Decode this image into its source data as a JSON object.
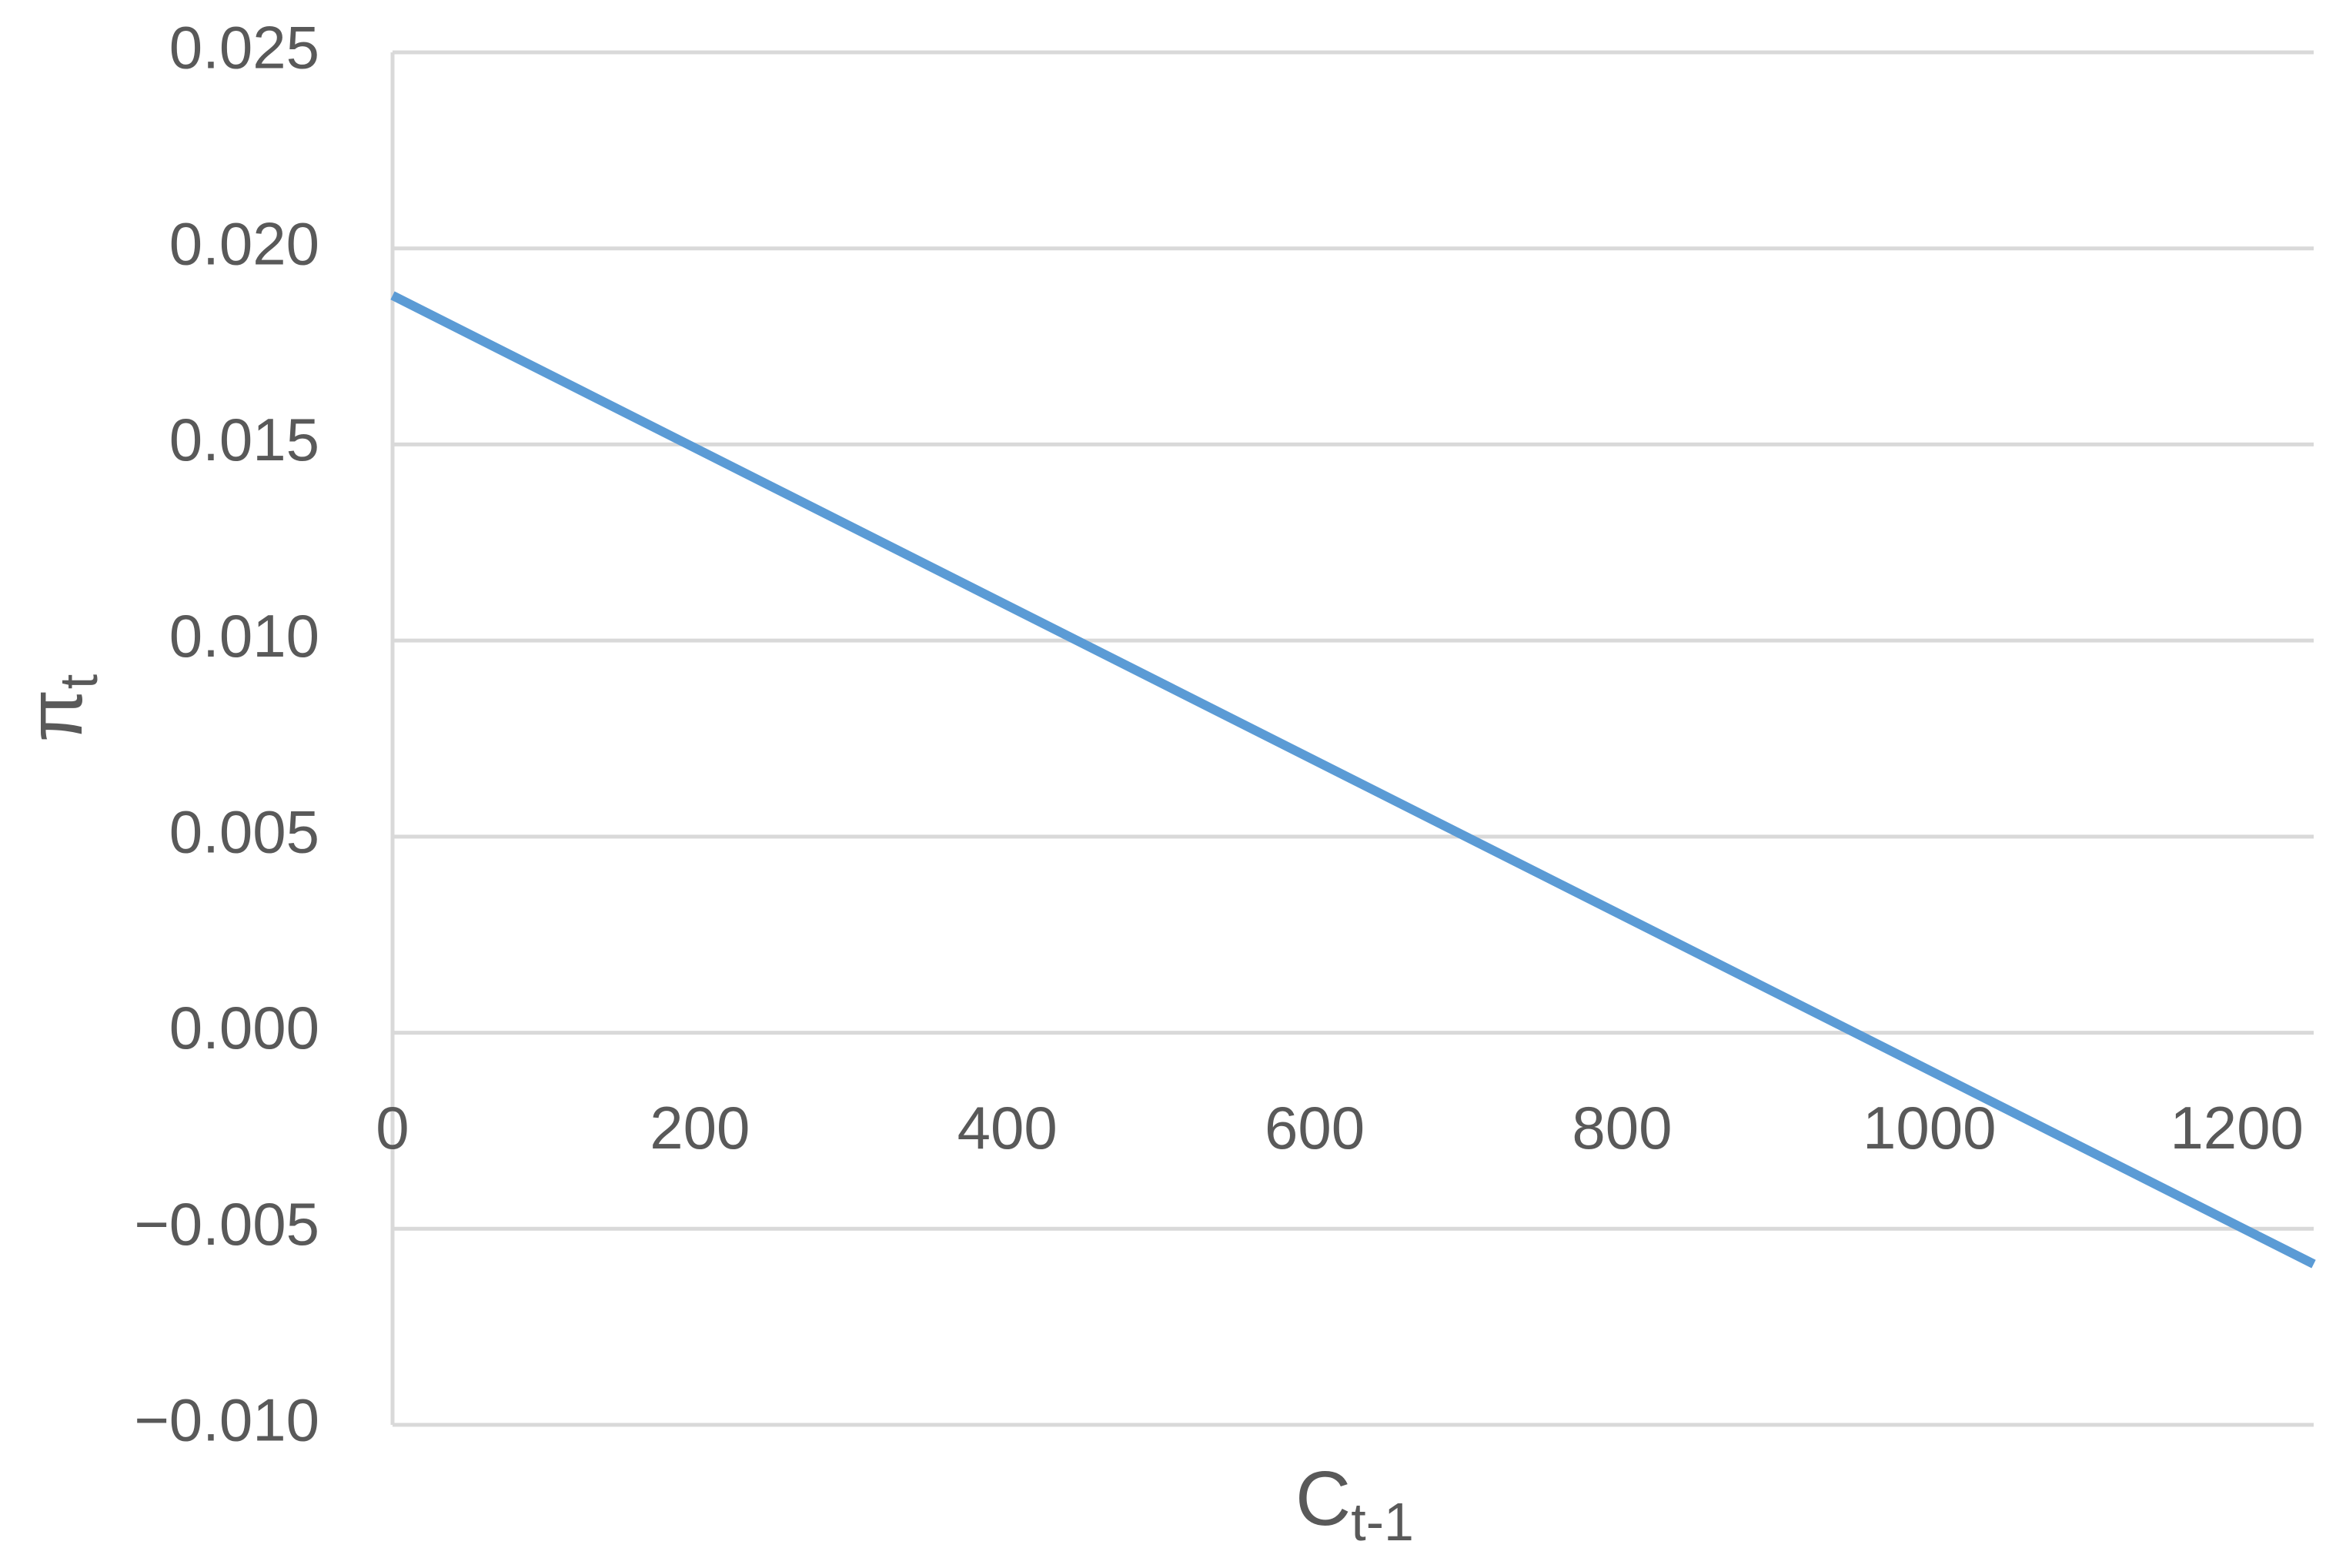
{
  "chart_data": {
    "type": "line",
    "xlabel": "C",
    "xlabel_sub": "t-1",
    "ylabel": "π",
    "ylabel_sub": "t",
    "x": [
      0,
      1250
    ],
    "series": [
      {
        "color": "#5b9bd5",
        "values": [
          0.0188,
          -0.0059
        ]
      }
    ],
    "xlim": [
      0,
      1250
    ],
    "xticks": [
      0,
      200,
      400,
      600,
      800,
      1000,
      1200
    ],
    "ylim": [
      -0.01,
      0.025
    ],
    "yticks": [
      {
        "value": -0.01,
        "label": "−0.010"
      },
      {
        "value": -0.005,
        "label": "−0.005"
      },
      {
        "value": 0,
        "label": "0.000"
      },
      {
        "value": 0.005,
        "label": "0.005"
      },
      {
        "value": 0.01,
        "label": "0.010"
      },
      {
        "value": 0.015,
        "label": "0.015"
      },
      {
        "value": 0.02,
        "label": "0.020"
      },
      {
        "value": 0.025,
        "label": "0.025"
      }
    ],
    "grid": true
  }
}
